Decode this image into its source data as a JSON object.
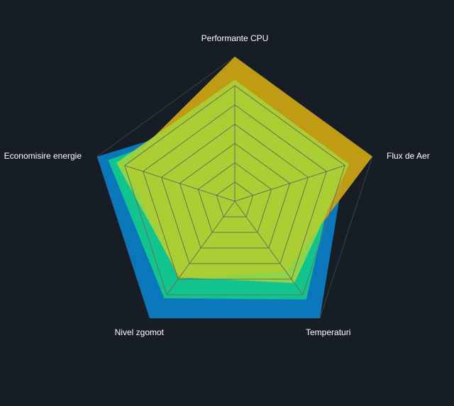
{
  "chart_data": {
    "type": "radar",
    "axes": [
      "Performante CPU",
      "Flux de Aer",
      "Temperaturi",
      "Nivel zgomot",
      "Economisire energie"
    ],
    "scale": [
      0,
      100
    ],
    "grid_levels": 6,
    "series": [
      {
        "values": [
          60,
          80,
          100,
          100,
          100
        ],
        "color": "#0a7cc4"
      },
      {
        "values": [
          60,
          74,
          84,
          83,
          92
        ],
        "color": "#10c98a"
      },
      {
        "values": [
          100,
          100,
          60,
          66,
          80
        ],
        "color": "#c9a214"
      },
      {
        "values": [
          84,
          83,
          70,
          65,
          86
        ],
        "color": "#a6d63a"
      }
    ]
  }
}
